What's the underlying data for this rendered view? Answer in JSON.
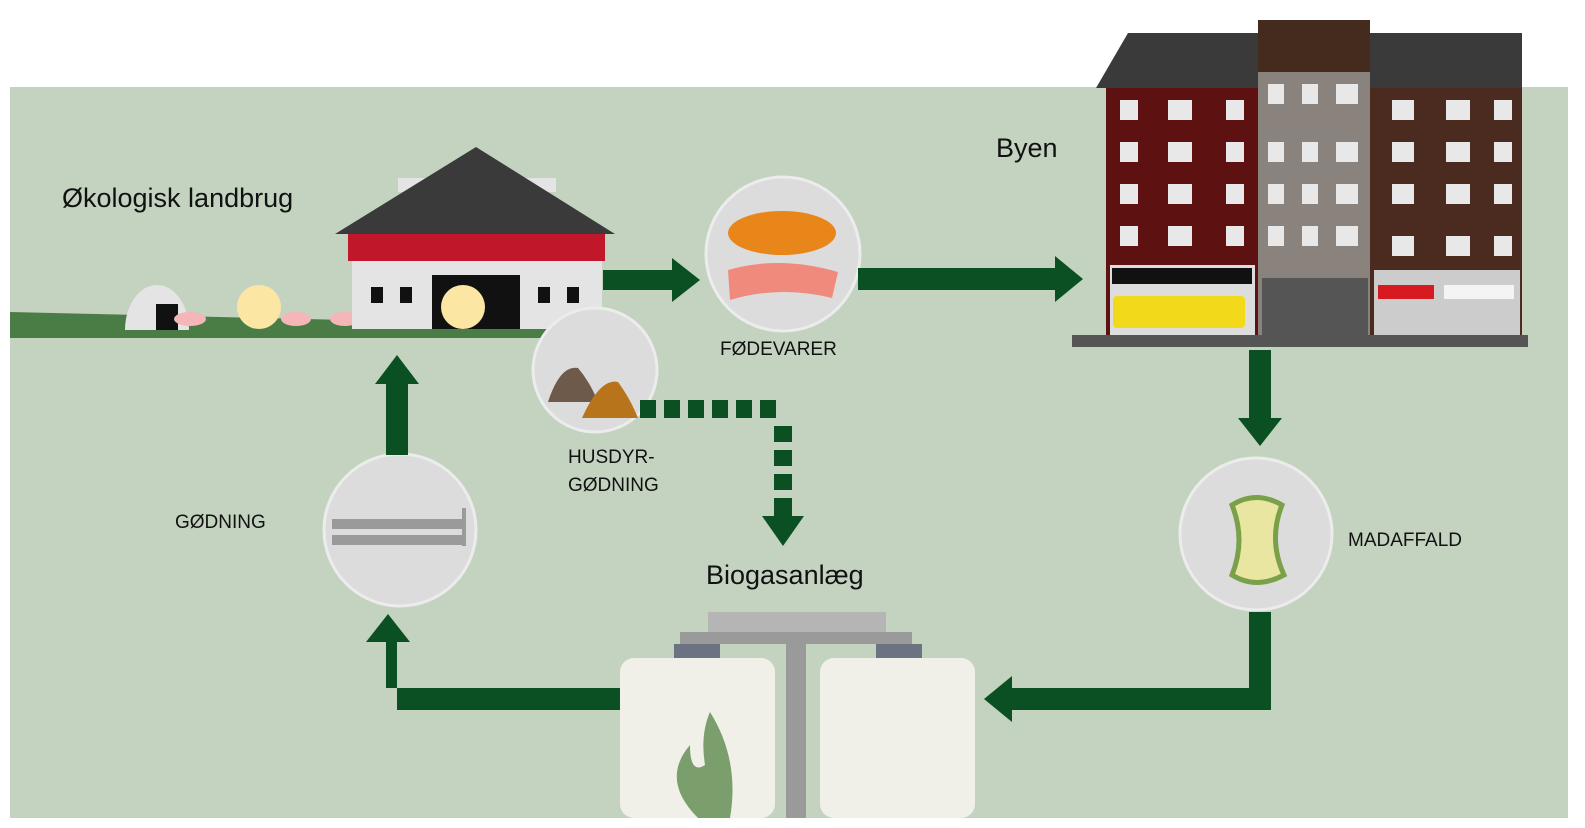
{
  "farm": {
    "label": "Økologisk landbrug"
  },
  "city": {
    "label": "Byen"
  },
  "food": {
    "label": "FØDEVARER"
  },
  "manure": {
    "lines": [
      "HUSDYR-",
      "GØDNING"
    ]
  },
  "fertilizer": {
    "label": "GØDNING"
  },
  "biogas": {
    "label": "Biogasanlæg"
  },
  "foodwaste": {
    "label": "MADAFFALD"
  }
}
